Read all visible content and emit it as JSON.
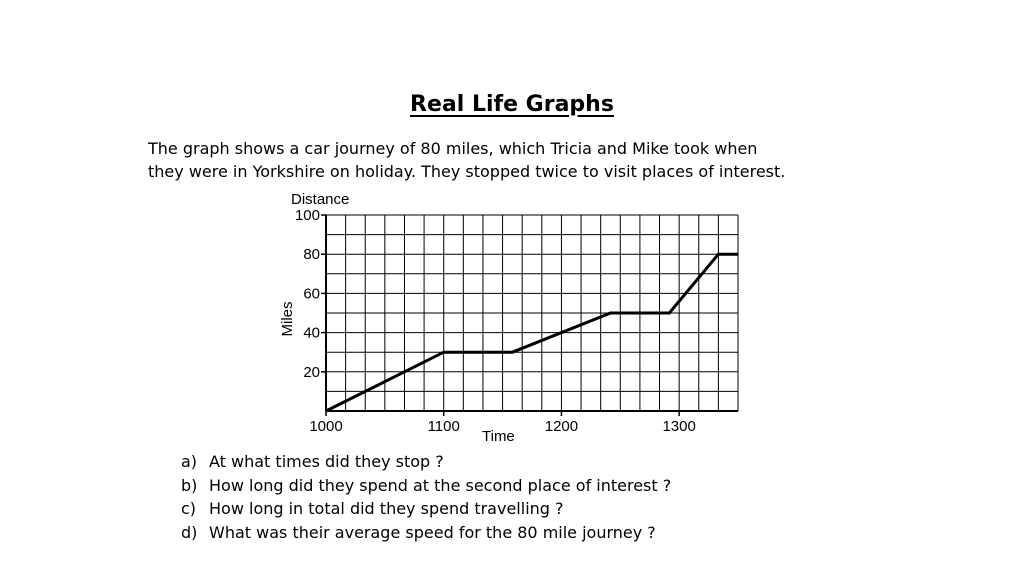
{
  "title": "Real Life Graphs",
  "intro": {
    "line1": "The graph shows a car journey of 80 miles, which Tricia and Mike took when",
    "line2": "they were in Yorkshire on holiday. They stopped twice to visit places of interest."
  },
  "chart_data": {
    "type": "line",
    "title": "",
    "xlabel": "Time",
    "ylabel": "Miles",
    "y_axis_header": "Distance",
    "x_range": [
      "1000",
      "1330"
    ],
    "ylim": [
      0,
      100
    ],
    "x_ticks": [
      "1000",
      "1100",
      "1200",
      "1300"
    ],
    "y_ticks": [
      "20",
      "40",
      "60",
      "80",
      "100"
    ],
    "grid": true,
    "series": [
      {
        "points": [
          {
            "x": "1000",
            "y": 0
          },
          {
            "x": "1100",
            "y": 30
          },
          {
            "x": "1135",
            "y": 30
          },
          {
            "x": "1185",
            "y": 50
          },
          {
            "x": "1255",
            "y": 50
          },
          {
            "x": "1320",
            "y": 80
          },
          {
            "x": "1330",
            "y": 80
          }
        ]
      }
    ]
  },
  "questions": [
    {
      "letter": "a)",
      "text": "At what times did they stop ?"
    },
    {
      "letter": "b)",
      "text": "How long did they spend at the second place of interest ?"
    },
    {
      "letter": "c)",
      "text": "How long in total did they spend travelling ?"
    },
    {
      "letter": "d)",
      "text": "What was their average speed for the 80 mile journey ?"
    }
  ]
}
